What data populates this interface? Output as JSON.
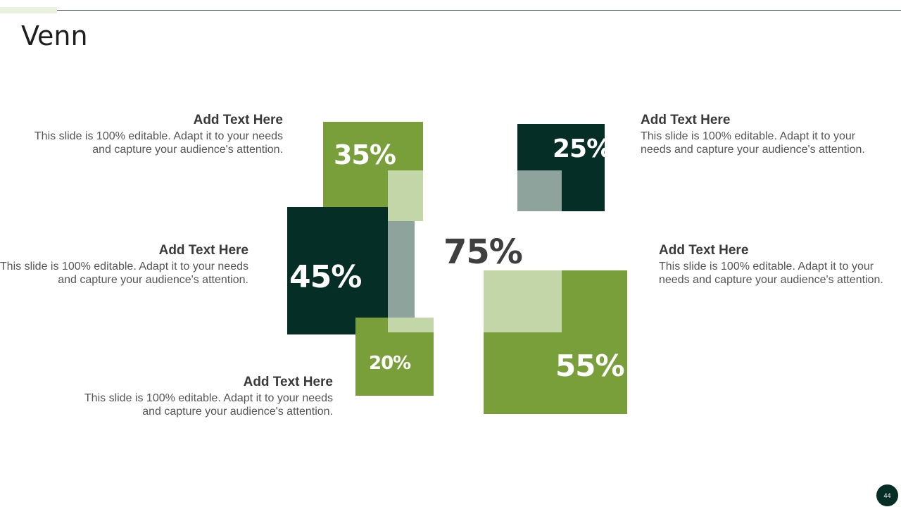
{
  "slide": {
    "title": "Venn",
    "page_number": "44"
  },
  "colors": {
    "dark_green": "#052e26",
    "mid_green": "#789f3a",
    "light_green": "#c3d6a7",
    "gray_green": "#8fa39d",
    "text_dark": "#3a3a3a"
  },
  "venn": {
    "center_label": "75%",
    "percent_35": "35%",
    "percent_45": "45%",
    "percent_20": "20%",
    "percent_25": "25%",
    "percent_55": "55%"
  },
  "text_blocks": {
    "top_left": {
      "heading": "Add Text Here",
      "body": "This slide is 100% editable. Adapt it to your needs and capture your audience's attention."
    },
    "mid_left": {
      "heading": "Add Text Here",
      "body": "This slide is 100% editable. Adapt it to your needs and capture your audience's attention."
    },
    "bottom_left": {
      "heading": "Add Text Here",
      "body": "This slide is 100% editable. Adapt it to your needs and capture your audience's attention."
    },
    "top_right": {
      "heading": "Add Text Here",
      "body": "This slide is 100% editable. Adapt it to your needs and capture your audience's attention."
    },
    "mid_right": {
      "heading": "Add Text Here",
      "body": "This slide is 100% editable. Adapt it to your needs and capture your audience's attention."
    }
  }
}
